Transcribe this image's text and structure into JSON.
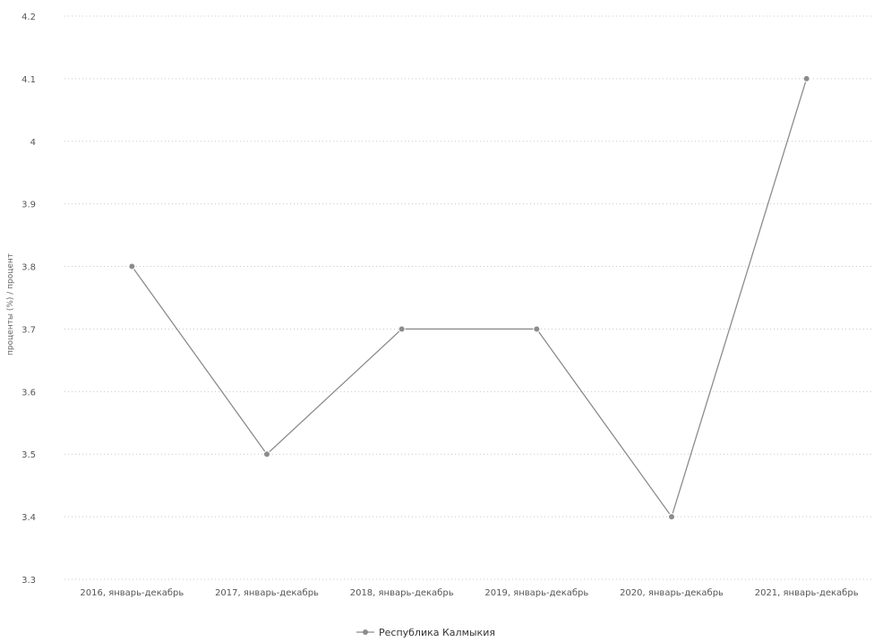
{
  "chart_data": {
    "type": "line",
    "title": "",
    "xlabel": "",
    "ylabel": "проценты (%) / процент",
    "categories": [
      "2016, январь-декабрь",
      "2017, январь-декабрь",
      "2018, январь-декабрь",
      "2019, январь-декабрь",
      "2020, январь-декабрь",
      "2021, январь-декабрь"
    ],
    "series": [
      {
        "name": "Республика Калмыкия",
        "values": [
          3.8,
          3.5,
          3.7,
          3.7,
          3.4,
          4.1
        ]
      }
    ],
    "ylim": [
      3.3,
      4.2
    ],
    "yticks": [
      "4.2",
      "4.1",
      "4",
      "3.9",
      "3.8",
      "3.7",
      "3.6",
      "3.5",
      "3.4",
      "3.3"
    ],
    "grid": true,
    "legend_position": "bottom",
    "colors": {
      "line": "#8c8c8c",
      "marker": "#8c8c8c",
      "grid": "#c8c8c8"
    }
  }
}
